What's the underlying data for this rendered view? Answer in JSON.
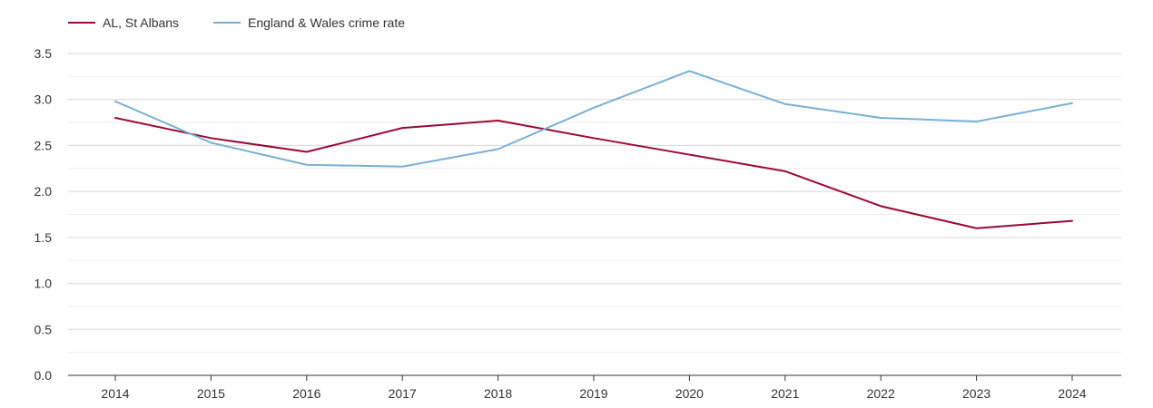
{
  "chart_data": {
    "type": "line",
    "title": "",
    "xlabel": "",
    "ylabel": "",
    "x": [
      "2014",
      "2015",
      "2016",
      "2017",
      "2018",
      "2019",
      "2020",
      "2021",
      "2022",
      "2023",
      "2024"
    ],
    "ylim": [
      0,
      3.5
    ],
    "yticks": [
      "0.0",
      "0.5",
      "1.0",
      "1.5",
      "2.0",
      "2.5",
      "3.0",
      "3.5"
    ],
    "grid": true,
    "legend_position": "top-left",
    "series": [
      {
        "name": "AL, St Albans",
        "color": "#9a0a33",
        "values": [
          2.8,
          2.58,
          2.43,
          2.69,
          2.77,
          2.58,
          2.4,
          2.22,
          1.84,
          1.6,
          1.68
        ]
      },
      {
        "name": "England & Wales crime rate",
        "color": "#79b0d3",
        "values": [
          2.98,
          2.53,
          2.29,
          2.27,
          2.46,
          2.91,
          3.31,
          2.95,
          2.8,
          2.76,
          2.96
        ]
      }
    ]
  }
}
